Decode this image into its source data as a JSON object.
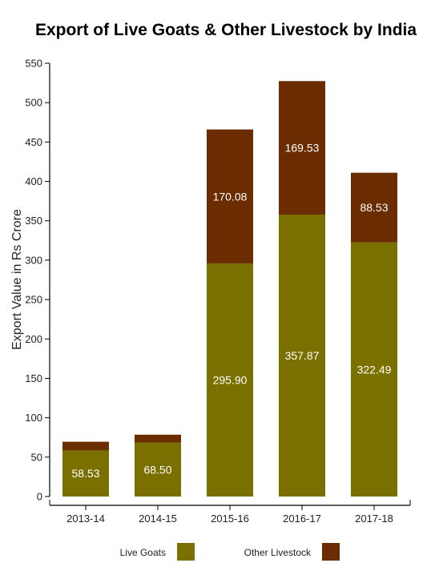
{
  "chart_data": {
    "type": "bar",
    "stacked": true,
    "title": "Export of Live Goats & Other Livestock by India",
    "xlabel": "",
    "ylabel": "Export Value in Rs Crore",
    "ylim": [
      0,
      550
    ],
    "yticks": [
      0,
      50,
      100,
      150,
      200,
      250,
      300,
      350,
      400,
      450,
      500,
      550
    ],
    "categories": [
      "2013-14",
      "2014-15",
      "2015-16",
      "2016-17",
      "2017-18"
    ],
    "series": [
      {
        "name": "Live Goats",
        "color": "#7a7000",
        "values": [
          58.53,
          68.5,
          295.9,
          357.87,
          322.49
        ],
        "labels": [
          "58.53",
          "68.50",
          "295.90",
          "357.87",
          "322.49"
        ]
      },
      {
        "name": "Other Livestock",
        "color": "#6b2c00",
        "values": [
          11.0,
          10.0,
          170.08,
          169.53,
          88.53
        ],
        "labels": [
          "",
          "",
          "170.08",
          "169.53",
          "88.53"
        ]
      }
    ],
    "legend_position": "bottom",
    "grid": false
  }
}
